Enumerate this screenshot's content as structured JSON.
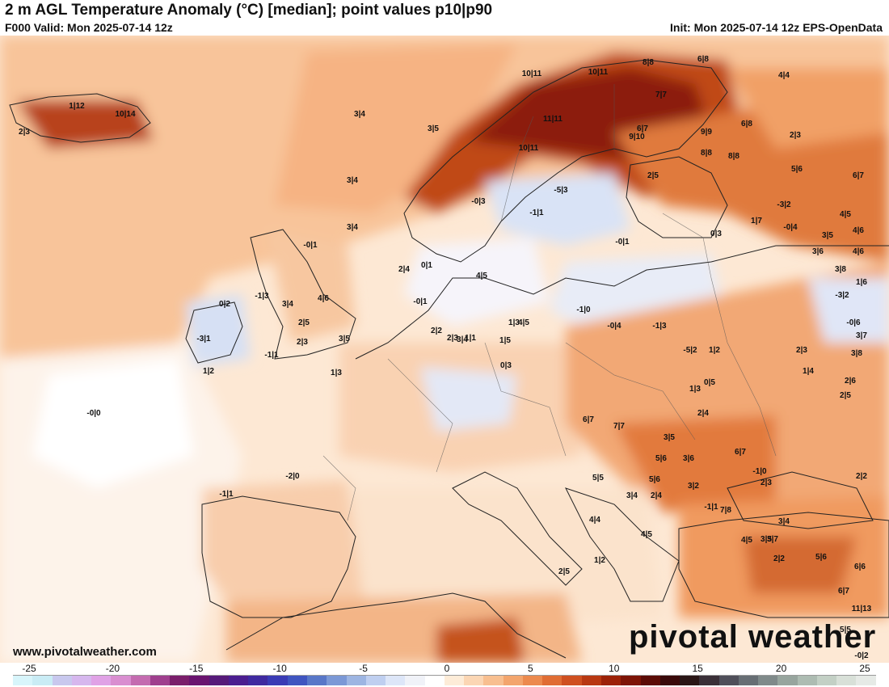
{
  "header": {
    "title": "2 m AGL Temperature Anomaly (°C) [median]; point values p10|p90",
    "valid": "F000 Valid: Mon 2025-07-14 12z",
    "init": "Init: Mon 2025-07-14 12z EPS-OpenData"
  },
  "footer": {
    "website": "www.pivotalweather.com",
    "logo_text": "pivotal weather"
  },
  "colorbar": {
    "ticks": [
      "-25",
      "-20",
      "-15",
      "-10",
      "-5",
      "0",
      "5",
      "10",
      "15",
      "20",
      "25"
    ],
    "colors": [
      "#d8f5fb",
      "#c9ecf5",
      "#c8c8ee",
      "#d6b7ee",
      "#e0a2e6",
      "#d98ed0",
      "#c46bb0",
      "#9f3f8e",
      "#7a1e6b",
      "#6a1470",
      "#561a7a",
      "#4b1e90",
      "#3f2aa0",
      "#3a3bb5",
      "#3f55c0",
      "#5877c8",
      "#7b98d6",
      "#9db5e2",
      "#bfcff0",
      "#dde6f8",
      "#f0f2f8",
      "#ffffff",
      "#fdecd8",
      "#fbd6b4",
      "#f8bf90",
      "#f3a56d",
      "#ec8a4e",
      "#e06d34",
      "#cf5020",
      "#b83812",
      "#9c2209",
      "#7d1406",
      "#5c0c06",
      "#3a0a0a",
      "#2a1616",
      "#3a3038",
      "#4f4f5a",
      "#676e74",
      "#7f8a8a",
      "#97a59e",
      "#adbcb2",
      "#c3d0c5",
      "#d8e0d8",
      "#e6eae6"
    ],
    "tick_fraction_positions": [
      0.0,
      0.1,
      0.2,
      0.3,
      0.4,
      0.5,
      0.6,
      0.7,
      0.8,
      0.9,
      1.0
    ]
  },
  "map": {
    "region": "Europe",
    "point_values": [
      "1|12",
      "10|14",
      "2|3",
      "3|4",
      "3|5",
      "3|4",
      "3|4",
      "-0|0",
      "-3|1",
      "-2|0",
      "-1|1",
      "11|11",
      "10|11",
      "10|11",
      "10|11",
      "8|8",
      "6|8",
      "4|4",
      "7|7",
      "9|9",
      "8|8",
      "8|8",
      "6|8",
      "9|10",
      "6|7",
      "2|5",
      "5|6",
      "6|7",
      "2|3",
      "-0|3",
      "-5|3",
      "-1|1",
      "-0|1",
      "0|3",
      "1|7",
      "-0|4",
      "-3|2",
      "4|5",
      "3|5",
      "4|6",
      "3|6",
      "4|6",
      "3|8",
      "1|6",
      "-3|2",
      "-0|6",
      "3|7",
      "3|8",
      "2|6",
      "2|5",
      "2|3",
      "1|4",
      "-0|1",
      "0|2",
      "-1|3",
      "3|4",
      "4|6",
      "2|5",
      "3|5",
      "2|3",
      "1|2",
      "-1|1",
      "1|3",
      "2|4",
      "0|1",
      "-0|1",
      "2|2",
      "1|1",
      "2|3",
      "4|5",
      "3|4",
      "0|3",
      "1|5",
      "1|3",
      "4|5",
      "-1|0",
      "-0|4",
      "-1|3",
      "-5|2",
      "1|2",
      "0|5",
      "1|3",
      "2|4",
      "3|6",
      "5|6",
      "2|4",
      "3|4",
      "7|7",
      "6|7",
      "5|5",
      "5|6",
      "3|5",
      "4|5",
      "4|4",
      "1|2",
      "2|5",
      "6|7",
      "7|8",
      "4|5",
      "3|5",
      "3|2",
      "-1|1",
      "-1|0",
      "2|3",
      "3|4",
      "3|7",
      "2|2",
      "5|6",
      "6|6",
      "6|7",
      "11|13",
      "5|5",
      "-0|2",
      "2|2",
      "1|2",
      "0|1",
      "-1|0"
    ]
  }
}
